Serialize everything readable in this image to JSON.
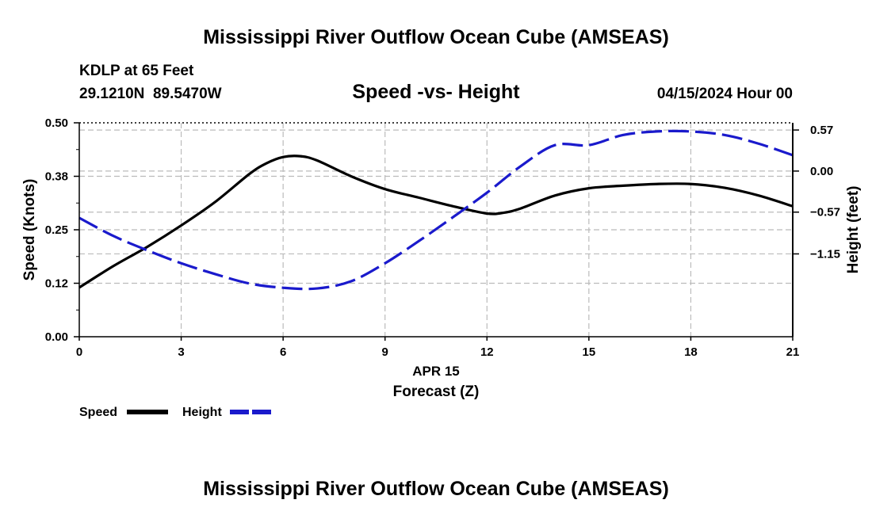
{
  "page": {
    "title": "Mississippi River Outflow Ocean Cube (AMSEAS)",
    "footer_title": "Mississippi River Outflow Ocean Cube (AMSEAS)",
    "station_line": "KDLP at 65 Feet",
    "coords_line": "29.1210N  89.5470W",
    "date_line": "04/15/2024 Hour 00"
  },
  "chart_data": {
    "type": "line",
    "title": "Speed -vs- Height",
    "xlabel": "Forecast (Z)",
    "xsublabel": "APR 15",
    "ylabel": "Speed (Knots)",
    "y2label": "Height (feet)",
    "xlim": [
      0,
      21
    ],
    "ylim": [
      0,
      0.5
    ],
    "y2lim": [
      -2.3,
      0.67
    ],
    "x_ticks": [
      0,
      3,
      6,
      9,
      12,
      15,
      18,
      21
    ],
    "x_tick_labels": [
      "0",
      "3",
      "6",
      "9",
      "12",
      "15",
      "18",
      "21"
    ],
    "y_ticks": [
      0.0,
      0.125,
      0.25,
      0.375,
      0.5
    ],
    "y_tick_labels": [
      "0.00",
      "0.12",
      "0.25",
      "0.38",
      "0.50"
    ],
    "y2_ticks": [
      -1.15,
      -0.57,
      0.0,
      0.57
    ],
    "y2_tick_labels": [
      "−1.15",
      "−0.57",
      "0.00",
      "0.57"
    ],
    "grid": true,
    "legend_position": "bottom-left",
    "colors": {
      "speed": "#000000",
      "height": "#1a1acc",
      "grid": "#bbbbbb"
    },
    "series": [
      {
        "name": "Speed",
        "axis": "left",
        "style": "solid",
        "x": [
          0,
          1,
          2,
          3,
          4,
          5,
          5.5,
          6,
          6.5,
          7,
          8,
          9,
          10,
          11,
          12,
          12.5,
          13,
          14,
          15,
          16,
          17,
          18,
          19,
          20,
          21
        ],
        "values": [
          0.115,
          0.165,
          0.21,
          0.26,
          0.315,
          0.38,
          0.405,
          0.42,
          0.422,
          0.412,
          0.375,
          0.345,
          0.325,
          0.305,
          0.288,
          0.29,
          0.3,
          0.33,
          0.347,
          0.353,
          0.357,
          0.357,
          0.348,
          0.33,
          0.305
        ]
      },
      {
        "name": "Height",
        "axis": "right",
        "style": "dashed",
        "x": [
          0,
          1,
          2,
          3,
          4,
          5,
          6,
          7,
          8,
          9,
          10,
          11,
          12,
          13,
          14,
          15,
          16,
          17,
          18,
          19,
          20,
          21
        ],
        "values": [
          -0.65,
          -0.9,
          -1.1,
          -1.28,
          -1.43,
          -1.56,
          -1.62,
          -1.63,
          -1.53,
          -1.28,
          -0.97,
          -0.64,
          -0.3,
          0.07,
          0.36,
          0.36,
          0.5,
          0.55,
          0.55,
          0.5,
          0.38,
          0.22
        ]
      }
    ]
  }
}
